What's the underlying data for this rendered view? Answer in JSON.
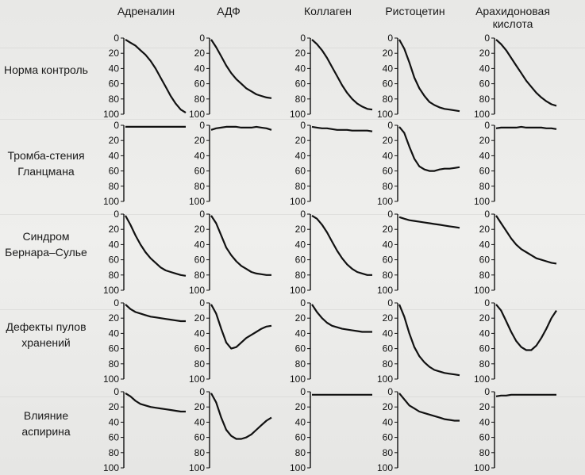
{
  "columns": [
    "Адреналин",
    "АДФ",
    "Коллаген",
    "Ристоцетин",
    "Арахидоновая кислота"
  ],
  "rows": [
    {
      "label": "Норма контроль"
    },
    {
      "label": "Тромба-стения Гланцмана"
    },
    {
      "label": "Синдром Бернара–Сулье"
    },
    {
      "label": "Дефекты пулов хранений"
    },
    {
      "label": "Влияние аспирина"
    }
  ],
  "chart_data": {
    "type": "line",
    "yticks": [
      "0",
      "20",
      "40",
      "60",
      "80",
      "100"
    ],
    "ylim": [
      0,
      100
    ],
    "panels": [
      [
        {
          "y": [
            2,
            6,
            10,
            16,
            22,
            30,
            40,
            52,
            64,
            76,
            86,
            94,
            98
          ]
        },
        {
          "y": [
            2,
            12,
            24,
            36,
            46,
            54,
            60,
            66,
            70,
            74,
            76,
            78,
            79
          ]
        },
        {
          "y": [
            2,
            8,
            16,
            26,
            38,
            50,
            62,
            72,
            80,
            86,
            90,
            93,
            94
          ]
        },
        {
          "y": [
            2,
            14,
            32,
            52,
            66,
            76,
            84,
            88,
            91,
            93,
            94,
            95,
            96
          ]
        },
        {
          "y": [
            2,
            8,
            16,
            26,
            36,
            46,
            56,
            64,
            72,
            78,
            83,
            87,
            89
          ]
        }
      ],
      [
        {
          "y": [
            2,
            2,
            2,
            2,
            2,
            2,
            2,
            2,
            2,
            2,
            2,
            2,
            2
          ]
        },
        {
          "y": [
            6,
            4,
            3,
            2,
            2,
            2,
            3,
            3,
            3,
            2,
            3,
            4,
            6
          ]
        },
        {
          "y": [
            2,
            3,
            4,
            4,
            5,
            6,
            6,
            6,
            7,
            7,
            7,
            7,
            8
          ]
        },
        {
          "y": [
            2,
            10,
            28,
            44,
            54,
            58,
            60,
            60,
            58,
            57,
            57,
            56,
            55
          ]
        },
        {
          "y": [
            4,
            3,
            3,
            3,
            3,
            2,
            3,
            3,
            3,
            3,
            4,
            4,
            5
          ]
        }
      ],
      [
        {
          "y": [
            2,
            14,
            28,
            40,
            50,
            58,
            64,
            70,
            74,
            76,
            78,
            80,
            81
          ]
        },
        {
          "y": [
            2,
            12,
            28,
            44,
            54,
            62,
            68,
            72,
            76,
            78,
            79,
            80,
            80
          ]
        },
        {
          "y": [
            2,
            6,
            14,
            24,
            36,
            48,
            58,
            66,
            72,
            76,
            78,
            80,
            80
          ]
        },
        {
          "y": [
            4,
            6,
            8,
            9,
            10,
            11,
            12,
            13,
            14,
            15,
            16,
            17,
            18
          ]
        },
        {
          "y": [
            2,
            12,
            22,
            32,
            40,
            46,
            50,
            54,
            58,
            60,
            62,
            64,
            65
          ]
        }
      ],
      [
        {
          "y": [
            2,
            8,
            12,
            14,
            16,
            18,
            19,
            20,
            21,
            22,
            23,
            24,
            24
          ]
        },
        {
          "y": [
            2,
            14,
            34,
            52,
            60,
            58,
            52,
            46,
            42,
            38,
            34,
            31,
            30
          ]
        },
        {
          "y": [
            2,
            12,
            20,
            26,
            30,
            32,
            34,
            35,
            36,
            37,
            38,
            38,
            38
          ]
        },
        {
          "y": [
            2,
            18,
            40,
            58,
            70,
            78,
            84,
            88,
            90,
            92,
            93,
            94,
            95
          ]
        },
        {
          "y": [
            2,
            10,
            24,
            38,
            50,
            58,
            62,
            62,
            56,
            46,
            34,
            20,
            10
          ]
        }
      ],
      [
        {
          "y": [
            2,
            6,
            12,
            16,
            18,
            20,
            21,
            22,
            23,
            24,
            25,
            26,
            26
          ]
        },
        {
          "y": [
            2,
            14,
            34,
            50,
            58,
            62,
            62,
            60,
            56,
            50,
            44,
            38,
            34
          ]
        },
        {
          "y": [
            4,
            4,
            4,
            4,
            4,
            4,
            4,
            4,
            4,
            4,
            4,
            4,
            4
          ]
        },
        {
          "y": [
            2,
            10,
            18,
            22,
            26,
            28,
            30,
            32,
            34,
            36,
            37,
            38,
            38
          ]
        },
        {
          "y": [
            6,
            5,
            5,
            4,
            4,
            4,
            4,
            4,
            4,
            4,
            4,
            4,
            4
          ]
        }
      ]
    ]
  }
}
